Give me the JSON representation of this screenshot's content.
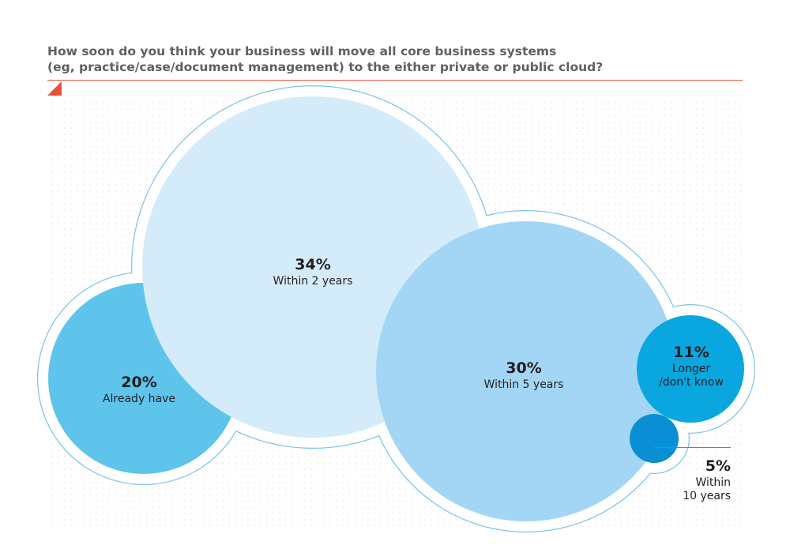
{
  "title_lines": [
    "How soon do you think your business will move all core business systems",
    "(eg, practice/case/document management) to the either private or public cloud?"
  ],
  "colors": {
    "accent": "#e8523a",
    "title": "#5f6062",
    "outline": "#7cc2e6",
    "dots": "#e3e3e3"
  },
  "chart_data": {
    "type": "bubble",
    "title": "How soon do you think your business will move all core business systems (eg, practice/case/document management) to the either private or public cloud?",
    "unit": "%",
    "items": [
      {
        "value_label": "20%",
        "value": 20,
        "label": [
          "Already have"
        ],
        "color": "#5ec4ec"
      },
      {
        "value_label": "34%",
        "value": 34,
        "label": [
          "Within 2 years"
        ],
        "color": "#d4ebfa"
      },
      {
        "value_label": "30%",
        "value": 30,
        "label": [
          "Within 5 years"
        ],
        "color": "#a3d6f4"
      },
      {
        "value_label": "11%",
        "value": 11,
        "label": [
          "Longer",
          "/don't know"
        ],
        "color": "#0aa6e0"
      },
      {
        "value_label": "5%",
        "value": 5,
        "label": [
          "Within",
          "10 years"
        ],
        "color": "#0a8fd4"
      }
    ]
  }
}
